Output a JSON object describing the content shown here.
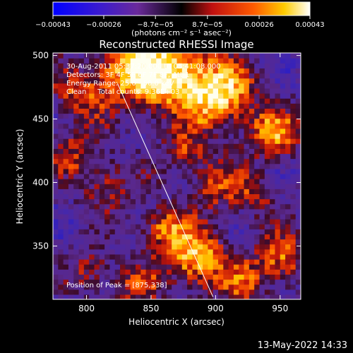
{
  "chart_data": {
    "type": "heatmap",
    "title": "Reconstructed RHESSI Image",
    "xlabel": "Heliocentric X (arcsec)",
    "ylabel": "Heliocentric Y (arcsec)",
    "xlim": [
      774,
      966
    ],
    "ylim": [
      308,
      502
    ],
    "x_ticks": [
      800,
      850,
      900,
      950
    ],
    "y_ticks": [
      350,
      400,
      450,
      500
    ],
    "colorbar": {
      "label": "(photons cm⁻² s⁻¹ asec⁻²)",
      "range": [
        -0.00043,
        0.00043
      ],
      "tick_values": [
        -0.00043,
        -0.00026,
        -8.7e-05,
        8.7e-05,
        0.00026,
        0.00043
      ],
      "tick_labels": [
        "−0.00043",
        "−0.00026",
        "−8.7e−05",
        "8.7e−05",
        "0.00026",
        "0.00043"
      ],
      "colors": [
        "#0000ff",
        "#5a1aa0",
        "#1a0a0a",
        "#c01010",
        "#ff7a00",
        "#ffffff"
      ]
    },
    "annotations": [
      "30-Aug-2011 05:37:20.000 to 05:41:08.000",
      "Detectors: 3F 4F 5F 6F 7F 8F, Att 1",
      "Energy Range: 25.0 - 50.0 keV",
      "Clean     Total counts: 9.36E+03",
      "Position of Peak = [875,338]"
    ],
    "limb_line": {
      "x": [
        824,
        898
      ],
      "y": [
        478,
        310
      ]
    },
    "peak": {
      "x": 875,
      "y": 338
    }
  },
  "footer": {
    "date": "13-May-2022 14:33"
  }
}
